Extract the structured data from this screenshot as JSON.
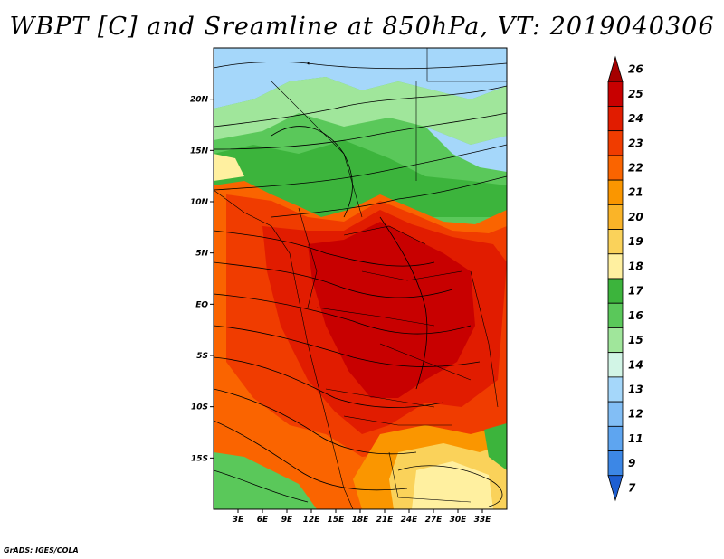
{
  "title": "WBPT [C] and Sreamline at 850hPa, VT: 2019040306",
  "credit": "GrADS: IGES/COLA",
  "lat_axis": {
    "range": [
      -20,
      25
    ],
    "ticks": [
      {
        "value": 20,
        "label": "20N"
      },
      {
        "value": 15,
        "label": "15N"
      },
      {
        "value": 10,
        "label": "10N"
      },
      {
        "value": 5,
        "label": "5N"
      },
      {
        "value": 0,
        "label": "EQ"
      },
      {
        "value": -5,
        "label": "5S"
      },
      {
        "value": -10,
        "label": "10S"
      },
      {
        "value": -15,
        "label": "15S"
      }
    ]
  },
  "lon_axis": {
    "range": [
      0,
      36
    ],
    "ticks": [
      {
        "value": 3,
        "label": "3E"
      },
      {
        "value": 6,
        "label": "6E"
      },
      {
        "value": 9,
        "label": "9E"
      },
      {
        "value": 12,
        "label": "12E"
      },
      {
        "value": 15,
        "label": "15E"
      },
      {
        "value": 18,
        "label": "18E"
      },
      {
        "value": 21,
        "label": "21E"
      },
      {
        "value": 24,
        "label": "24E"
      },
      {
        "value": 27,
        "label": "27E"
      },
      {
        "value": 30,
        "label": "30E"
      },
      {
        "value": 33,
        "label": "33E"
      }
    ]
  },
  "colorbar": {
    "levels": [
      {
        "label": "26",
        "color": "#a50000"
      },
      {
        "label": "25",
        "color": "#c80000"
      },
      {
        "label": "24",
        "color": "#e11c00"
      },
      {
        "label": "23",
        "color": "#f03c00"
      },
      {
        "label": "22",
        "color": "#fa6400"
      },
      {
        "label": "21",
        "color": "#fa9600"
      },
      {
        "label": "20",
        "color": "#fab428"
      },
      {
        "label": "19",
        "color": "#fad25a"
      },
      {
        "label": "18",
        "color": "#fff0a0"
      },
      {
        "label": "17",
        "color": "#3cb43c"
      },
      {
        "label": "16",
        "color": "#5ac85a"
      },
      {
        "label": "15",
        "color": "#a0e69b"
      },
      {
        "label": "14",
        "color": "#d2f5e6"
      },
      {
        "label": "13",
        "color": "#a5d7fa"
      },
      {
        "label": "12",
        "color": "#82bef5"
      },
      {
        "label": "11",
        "color": "#5ea5f0"
      },
      {
        "label": "9",
        "color": "#3c87e6"
      },
      {
        "label": "7",
        "color": "#1e5fd2"
      }
    ]
  },
  "field_colors": {
    "green_dark": "#3cb43c",
    "green_mid": "#5ac85a",
    "green_light": "#a0e69b",
    "blue_light": "#a5d7fa",
    "red_dark": "#c80000",
    "red": "#e11c00",
    "red_orange": "#f03c00",
    "orange": "#fa6400",
    "orange_light": "#fa9600",
    "yellow": "#fad25a",
    "cream": "#fff0a0"
  }
}
